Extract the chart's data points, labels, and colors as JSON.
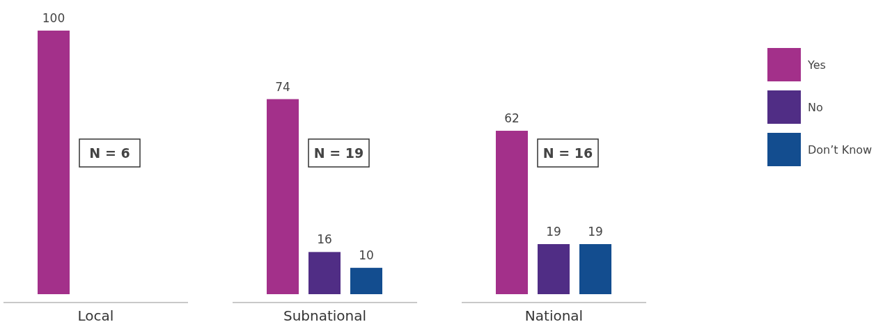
{
  "chart_data": {
    "type": "bar",
    "categories": [
      "Local",
      "Subnational",
      "National"
    ],
    "series": [
      {
        "name": "Yes",
        "color": "#a3308a",
        "values": [
          100,
          74,
          62
        ]
      },
      {
        "name": "No",
        "color": "#502d85",
        "values": [
          null,
          16,
          19
        ]
      },
      {
        "name": "Don’t Know",
        "color": "#134d8f",
        "values": [
          null,
          10,
          19
        ]
      }
    ],
    "data_labels": true,
    "legend": "right",
    "annotations": [
      "N = 6",
      "N = 19",
      "N = 16"
    ]
  }
}
